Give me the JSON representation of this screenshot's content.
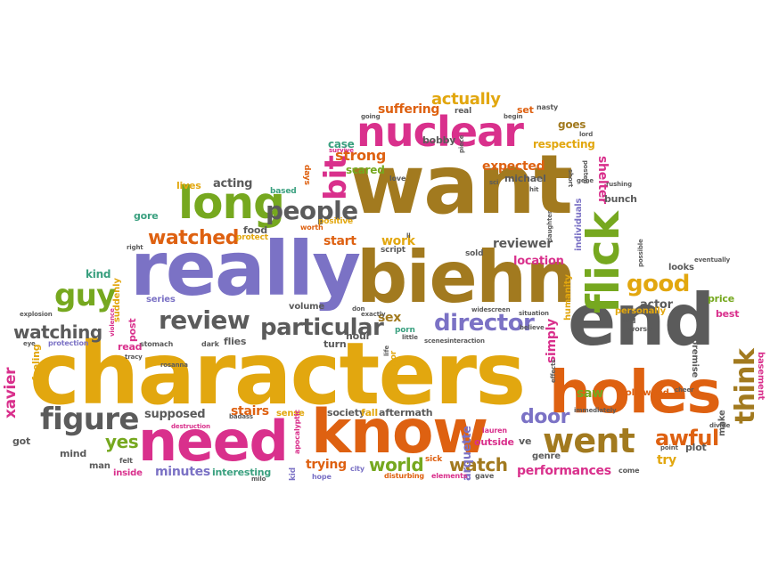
{
  "palette": {
    "gold": "#e2a70f",
    "brown": "#a27a1f",
    "purple": "#7b72c5",
    "magenta": "#d9308c",
    "orange": "#de6111",
    "gray": "#5b5b5b",
    "green": "#76a81f",
    "teal": "#3aa07f"
  },
  "words": [
    {
      "text": "characters",
      "color": "#e2a70f"
    },
    {
      "text": "want",
      "color": "#a27a1f"
    },
    {
      "text": "really",
      "color": "#7b72c5"
    },
    {
      "text": "biehn",
      "color": "#a27a1f"
    },
    {
      "text": "end",
      "color": "#5b5b5b"
    },
    {
      "text": "holes",
      "color": "#de6111"
    },
    {
      "text": "know",
      "color": "#de6111"
    },
    {
      "text": "need",
      "color": "#d9308c"
    },
    {
      "text": "nuclear",
      "color": "#d9308c"
    },
    {
      "text": "flick",
      "color": "#76a81f"
    },
    {
      "text": "long",
      "color": "#76a81f"
    },
    {
      "text": "people",
      "color": "#5b5b5b"
    },
    {
      "text": "went",
      "color": "#a27a1f"
    },
    {
      "text": "guy",
      "color": "#76a81f"
    },
    {
      "text": "review",
      "color": "#5b5b5b"
    },
    {
      "text": "figure",
      "color": "#5b5b5b"
    },
    {
      "text": "director",
      "color": "#7b72c5"
    },
    {
      "text": "particular",
      "color": "#5b5b5b"
    },
    {
      "text": "think",
      "color": "#a27a1f"
    },
    {
      "text": "watched",
      "color": "#de6111"
    },
    {
      "text": "good",
      "color": "#e2a70f"
    },
    {
      "text": "awful",
      "color": "#de6111"
    },
    {
      "text": "bit",
      "color": "#d9308c"
    },
    {
      "text": "watching",
      "color": "#5b5b5b"
    },
    {
      "text": "yes",
      "color": "#76a81f"
    },
    {
      "text": "world",
      "color": "#76a81f"
    },
    {
      "text": "watch",
      "color": "#a27a1f"
    },
    {
      "text": "door",
      "color": "#7b72c5"
    },
    {
      "text": "actually",
      "color": "#e2a70f"
    },
    {
      "text": "strong",
      "color": "#de6111"
    },
    {
      "text": "suffering",
      "color": "#de6111"
    },
    {
      "text": "expected",
      "color": "#de6111"
    },
    {
      "text": "acting",
      "color": "#5b5b5b"
    },
    {
      "text": "shelter",
      "color": "#d9308c"
    },
    {
      "text": "start",
      "color": "#de6111"
    },
    {
      "text": "work",
      "color": "#e2a70f"
    },
    {
      "text": "reviewer",
      "color": "#5b5b5b"
    },
    {
      "text": "location",
      "color": "#d9308c"
    },
    {
      "text": "sex",
      "color": "#a27a1f"
    },
    {
      "text": "minutes",
      "color": "#7b72c5"
    },
    {
      "text": "trying",
      "color": "#de6111"
    },
    {
      "text": "performances",
      "color": "#d9308c"
    },
    {
      "text": "stairs",
      "color": "#de6111"
    },
    {
      "text": "supposed",
      "color": "#5b5b5b"
    },
    {
      "text": "xavier",
      "color": "#d9308c"
    },
    {
      "text": "simply",
      "color": "#d9308c"
    },
    {
      "text": "saw",
      "color": "#76a81f"
    },
    {
      "text": "actor",
      "color": "#5b5b5b"
    },
    {
      "text": "try",
      "color": "#e2a70f"
    },
    {
      "text": "arquette",
      "color": "#7b72c5"
    },
    {
      "text": "goes",
      "color": "#a27a1f"
    },
    {
      "text": "respecting",
      "color": "#e2a70f"
    },
    {
      "text": "case",
      "color": "#3aa07f"
    },
    {
      "text": "scared",
      "color": "#76a81f"
    },
    {
      "text": "bobby",
      "color": "#5b5b5b"
    },
    {
      "text": "michael",
      "color": "#5b5b5b"
    },
    {
      "text": "lives",
      "color": "#e2a70f"
    },
    {
      "text": "gore",
      "color": "#3aa07f"
    },
    {
      "text": "food",
      "color": "#5b5b5b"
    },
    {
      "text": "kind",
      "color": "#3aa07f"
    },
    {
      "text": "post",
      "color": "#d9308c"
    },
    {
      "text": "series",
      "color": "#7b72c5"
    },
    {
      "text": "suddenly",
      "color": "#e2a70f"
    },
    {
      "text": "volume",
      "color": "#5b5b5b"
    },
    {
      "text": "hour",
      "color": "#5b5b5b"
    },
    {
      "text": "turn",
      "color": "#5b5b5b"
    },
    {
      "text": "flies",
      "color": "#5b5b5b"
    },
    {
      "text": "read",
      "color": "#d9308c"
    },
    {
      "text": "feeling",
      "color": "#e2a70f"
    },
    {
      "text": "got",
      "color": "#5b5b5b"
    },
    {
      "text": "mind",
      "color": "#5b5b5b"
    },
    {
      "text": "man",
      "color": "#5b5b5b"
    },
    {
      "text": "inside",
      "color": "#d9308c"
    },
    {
      "text": "interesting",
      "color": "#3aa07f"
    },
    {
      "text": "society",
      "color": "#5b5b5b"
    },
    {
      "text": "fall",
      "color": "#e2a70f"
    },
    {
      "text": "aftermath",
      "color": "#5b5b5b"
    },
    {
      "text": "outside",
      "color": "#d9308c"
    },
    {
      "text": "ve",
      "color": "#5b5b5b"
    },
    {
      "text": "genre",
      "color": "#5b5b5b"
    },
    {
      "text": "plot",
      "color": "#5b5b5b"
    },
    {
      "text": "make",
      "color": "#5b5b5b"
    },
    {
      "text": "basement",
      "color": "#d9308c"
    },
    {
      "text": "premise",
      "color": "#5b5b5b"
    },
    {
      "text": "best",
      "color": "#d9308c"
    },
    {
      "text": "price",
      "color": "#76a81f"
    },
    {
      "text": "looks",
      "color": "#5b5b5b"
    },
    {
      "text": "personally",
      "color": "#e2a70f"
    },
    {
      "text": "hollywood",
      "color": "#de6111"
    },
    {
      "text": "bunch",
      "color": "#5b5b5b"
    },
    {
      "text": "individuals",
      "color": "#7b72c5"
    },
    {
      "text": "humanity",
      "color": "#e2a70f"
    },
    {
      "text": "sense",
      "color": "#e2a70f"
    },
    {
      "text": "positive",
      "color": "#e2a70f"
    },
    {
      "text": "days",
      "color": "#de6111"
    },
    {
      "text": "based",
      "color": "#3aa07f"
    },
    {
      "text": "protect",
      "color": "#e2a70f"
    },
    {
      "text": "sold",
      "color": "#5b5b5b"
    },
    {
      "text": "porn",
      "color": "#3aa07f"
    },
    {
      "text": "real",
      "color": "#5b5b5b"
    },
    {
      "text": "set",
      "color": "#de6111"
    },
    {
      "text": "nasty",
      "color": "#5b5b5b"
    },
    {
      "text": "love",
      "color": "#5b5b5b"
    },
    {
      "text": "script",
      "color": "#5b5b5b"
    },
    {
      "text": "horror",
      "color": "#e2a70f"
    },
    {
      "text": "sick",
      "color": "#de6111"
    },
    {
      "text": "city",
      "color": "#7b72c5"
    },
    {
      "text": "hope",
      "color": "#7b72c5"
    },
    {
      "text": "kid",
      "color": "#7b72c5"
    },
    {
      "text": "elements",
      "color": "#d9308c"
    },
    {
      "text": "gave",
      "color": "#5b5b5b"
    },
    {
      "text": "come",
      "color": "#5b5b5b"
    },
    {
      "text": "worse",
      "color": "#5b5b5b"
    },
    {
      "text": "bad",
      "color": "#5b5b5b"
    },
    {
      "text": "protection",
      "color": "#7b72c5"
    },
    {
      "text": "explosion",
      "color": "#5b5b5b"
    },
    {
      "text": "stomach",
      "color": "#5b5b5b"
    },
    {
      "text": "dark",
      "color": "#5b5b5b"
    },
    {
      "text": "destruction",
      "color": "#d9308c"
    },
    {
      "text": "apocalyptic",
      "color": "#d9308c"
    },
    {
      "text": "lauren",
      "color": "#d9308c"
    },
    {
      "text": "felt",
      "color": "#5b5b5b"
    },
    {
      "text": "disturbing",
      "color": "#de6111"
    },
    {
      "text": "worth",
      "color": "#de6111"
    },
    {
      "text": "situation",
      "color": "#5b5b5b"
    },
    {
      "text": "believe",
      "color": "#5b5b5b"
    },
    {
      "text": "effects",
      "color": "#5b5b5b"
    },
    {
      "text": "point",
      "color": "#5b5b5b"
    },
    {
      "text": "divide",
      "color": "#5b5b5b"
    },
    {
      "text": "eventually",
      "color": "#5b5b5b"
    },
    {
      "text": "possible",
      "color": "#5b5b5b"
    },
    {
      "text": "rushing",
      "color": "#5b5b5b"
    },
    {
      "text": "daughter",
      "color": "#5b5b5b"
    },
    {
      "text": "posted",
      "color": "#5b5b5b"
    },
    {
      "text": "lord",
      "color": "#5b5b5b"
    },
    {
      "text": "going",
      "color": "#5b5b5b"
    },
    {
      "text": "survive",
      "color": "#d9308c"
    },
    {
      "text": "widescreen",
      "color": "#5b5b5b"
    },
    {
      "text": "piece",
      "color": "#5b5b5b"
    },
    {
      "text": "hit",
      "color": "#5b5b5b"
    },
    {
      "text": "sci",
      "color": "#5b5b5b"
    },
    {
      "text": "gene",
      "color": "#5b5b5b"
    },
    {
      "text": "short",
      "color": "#5b5b5b"
    },
    {
      "text": "interaction",
      "color": "#5b5b5b"
    },
    {
      "text": "scenes",
      "color": "#5b5b5b"
    },
    {
      "text": "little",
      "color": "#5b5b5b"
    },
    {
      "text": "life",
      "color": "#5b5b5b"
    },
    {
      "text": "exactly",
      "color": "#5b5b5b"
    },
    {
      "text": "violence",
      "color": "#d9308c"
    },
    {
      "text": "eye",
      "color": "#5b5b5b"
    },
    {
      "text": "right",
      "color": "#5b5b5b"
    },
    {
      "text": "tracy",
      "color": "#5b5b5b"
    },
    {
      "text": "rosanna",
      "color": "#5b5b5b"
    },
    {
      "text": "badass",
      "color": "#5b5b5b"
    },
    {
      "text": "immediately",
      "color": "#5b5b5b"
    },
    {
      "text": "cheer",
      "color": "#5b5b5b"
    },
    {
      "text": "ll",
      "color": "#5b5b5b"
    },
    {
      "text": "don",
      "color": "#5b5b5b"
    },
    {
      "text": "begin",
      "color": "#5b5b5b"
    },
    {
      "text": "milo",
      "color": "#5b5b5b"
    }
  ]
}
